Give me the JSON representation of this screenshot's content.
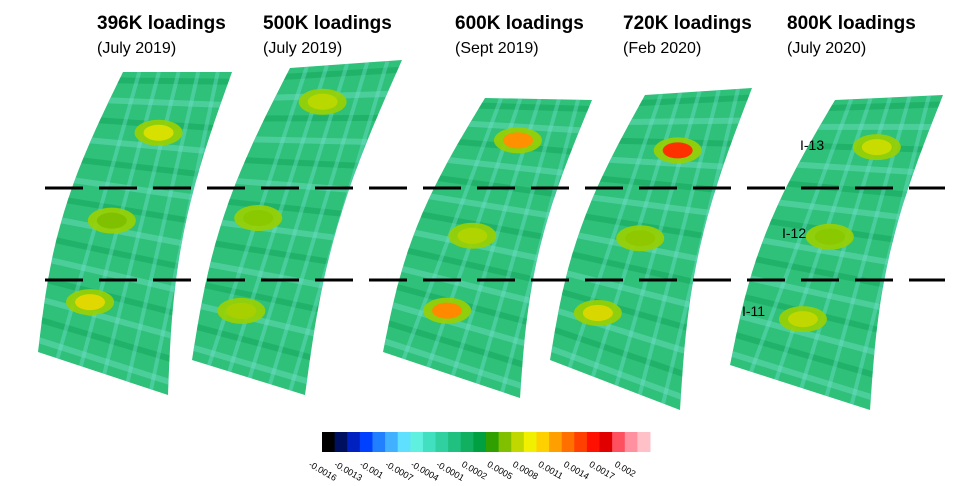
{
  "panels": [
    {
      "title": "396K loadings",
      "subtitle": "(July 2019)"
    },
    {
      "title": "500K loadings",
      "subtitle": "(July 2019)"
    },
    {
      "title": "600K loadings",
      "subtitle": "(Sept 2019)"
    },
    {
      "title": "720K loadings",
      "subtitle": "(Feb 2020)"
    },
    {
      "title": "800K loadings",
      "subtitle": "(July 2020)"
    }
  ],
  "regions": [
    "I-13",
    "I-12",
    "I-11"
  ],
  "colorbar": {
    "ticks": [
      "-0.0016",
      "-0.0013",
      "-0.001",
      "-0.0007",
      "-0.0004",
      "-0.0001",
      "0.0002",
      "0.0005",
      "0.0008",
      "0.0011",
      "0.0014",
      "0.0017",
      "0.002"
    ]
  }
}
